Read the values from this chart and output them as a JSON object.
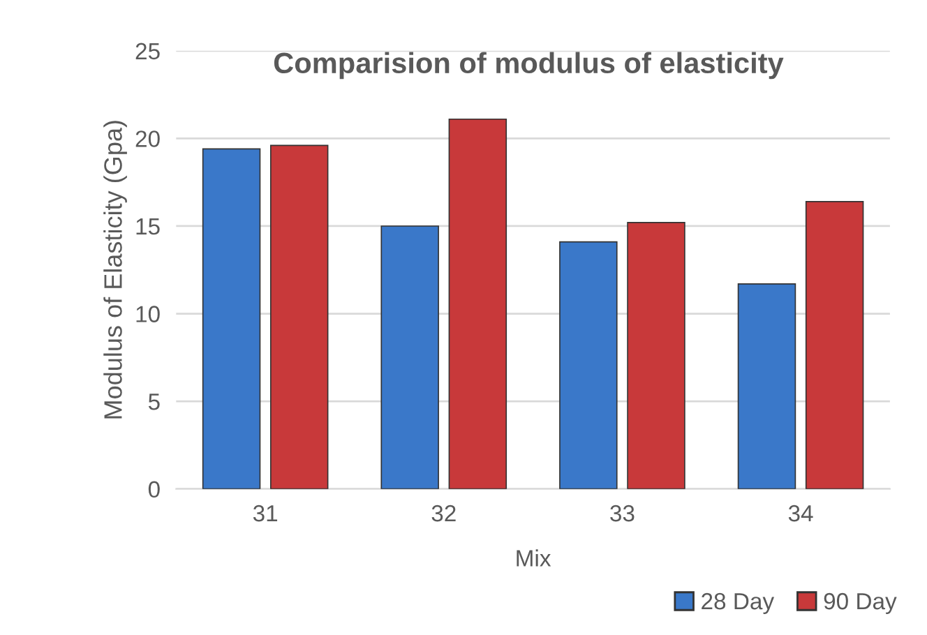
{
  "chart_data": {
    "type": "bar",
    "title": "Comparision of modulus of elasticity",
    "xlabel": "Mix",
    "ylabel": "Modulus of Elasticity (Gpa)",
    "categories": [
      "31",
      "32",
      "33",
      "34"
    ],
    "series": [
      {
        "name": "28 Day",
        "color": "#3a78c9",
        "values": [
          19.4,
          15.0,
          14.1,
          11.7
        ]
      },
      {
        "name": "90 Day",
        "color": "#c8393a",
        "values": [
          19.6,
          21.1,
          15.2,
          16.4
        ]
      }
    ],
    "ylim": [
      0,
      25
    ],
    "yticks": [
      0,
      5,
      10,
      15,
      20,
      25
    ],
    "grid": "y",
    "legend": "bottom right"
  }
}
